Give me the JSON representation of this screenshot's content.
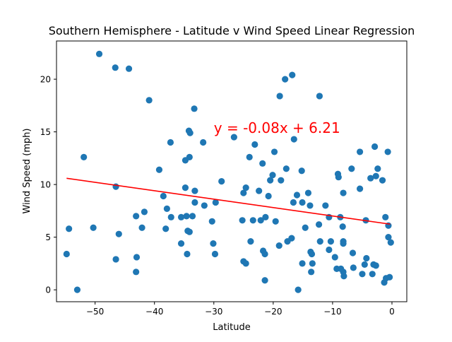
{
  "chart_data": {
    "type": "scatter",
    "title": "Southern Hemisphere - Latitude v Wind Speed Linear Regression",
    "xlabel": "Latitude",
    "ylabel": "Wind Speed (mph)",
    "xlim": [
      -56.5,
      2.5
    ],
    "ylim": [
      -1.13,
      23.63
    ],
    "xticks": [
      -50,
      -40,
      -30,
      -20,
      -10,
      0
    ],
    "yticks": [
      0,
      5,
      10,
      15,
      20
    ],
    "grid": false,
    "legend": "none",
    "point_color": "#1f77b4",
    "line_color": "#ff0000",
    "regression": {
      "equation": "y = -0.08x + 6.21",
      "slope": -0.08,
      "intercept": 6.21,
      "x_range": [
        -54.8,
        -0.3
      ],
      "label_position": [
        -30,
        14.9
      ]
    },
    "points": [
      [
        -54.8,
        3.4
      ],
      [
        -54.4,
        5.8
      ],
      [
        -53.0,
        0.0
      ],
      [
        -51.9,
        12.6
      ],
      [
        -50.3,
        5.9
      ],
      [
        -49.3,
        22.4
      ],
      [
        -46.6,
        21.1
      ],
      [
        -44.3,
        21.0
      ],
      [
        -46.5,
        9.8
      ],
      [
        -46.0,
        5.3
      ],
      [
        -46.5,
        2.9
      ],
      [
        -43.0,
        3.1
      ],
      [
        -43.1,
        1.7
      ],
      [
        -41.7,
        7.4
      ],
      [
        -42.1,
        5.9
      ],
      [
        -43.1,
        7.0
      ],
      [
        -40.9,
        18.0
      ],
      [
        -39.2,
        11.4
      ],
      [
        -38.5,
        8.9
      ],
      [
        -37.9,
        7.7
      ],
      [
        -38.1,
        5.8
      ],
      [
        -37.3,
        14.0
      ],
      [
        -37.2,
        6.9
      ],
      [
        -35.5,
        6.9
      ],
      [
        -35.5,
        4.4
      ],
      [
        -34.8,
        12.3
      ],
      [
        -34.8,
        9.7
      ],
      [
        -34.6,
        7.0
      ],
      [
        -34.5,
        3.4
      ],
      [
        -34.4,
        5.6
      ],
      [
        -34.1,
        5.5
      ],
      [
        -34.2,
        15.1
      ],
      [
        -34.0,
        14.9
      ],
      [
        -34.1,
        12.6
      ],
      [
        -33.6,
        7.0
      ],
      [
        -33.3,
        17.2
      ],
      [
        -33.2,
        8.3
      ],
      [
        -33.2,
        9.4
      ],
      [
        -31.8,
        14.0
      ],
      [
        -31.6,
        8.0
      ],
      [
        -30.3,
        6.5
      ],
      [
        -30.1,
        4.4
      ],
      [
        -29.8,
        3.4
      ],
      [
        -29.7,
        8.3
      ],
      [
        -28.7,
        10.3
      ],
      [
        -26.6,
        14.5
      ],
      [
        -25.2,
        6.6
      ],
      [
        -25.0,
        9.2
      ],
      [
        -25.0,
        2.7
      ],
      [
        -24.6,
        2.5
      ],
      [
        -24.6,
        9.7
      ],
      [
        -24.0,
        12.6
      ],
      [
        -23.8,
        4.6
      ],
      [
        -23.4,
        6.6
      ],
      [
        -23.1,
        13.8
      ],
      [
        -22.4,
        9.4
      ],
      [
        -22.1,
        6.6
      ],
      [
        -21.8,
        12.0
      ],
      [
        -21.7,
        3.7
      ],
      [
        -21.4,
        3.4
      ],
      [
        -21.4,
        0.9
      ],
      [
        -21.3,
        6.9
      ],
      [
        -20.8,
        8.9
      ],
      [
        -20.5,
        10.4
      ],
      [
        -20.1,
        10.9
      ],
      [
        -19.8,
        13.1
      ],
      [
        -19.6,
        6.5
      ],
      [
        -18.9,
        18.4
      ],
      [
        -19.0,
        4.2
      ],
      [
        -18.7,
        10.4
      ],
      [
        -18.0,
        20.0
      ],
      [
        -17.8,
        11.5
      ],
      [
        -17.6,
        4.6
      ],
      [
        -16.8,
        20.4
      ],
      [
        -16.9,
        4.9
      ],
      [
        -16.5,
        14.3
      ],
      [
        -16.6,
        8.3
      ],
      [
        -16.0,
        9.0
      ],
      [
        -15.8,
        0.0
      ],
      [
        -15.1,
        8.3
      ],
      [
        -15.2,
        11.3
      ],
      [
        -15.1,
        2.5
      ],
      [
        -14.6,
        5.9
      ],
      [
        -14.1,
        9.2
      ],
      [
        -13.8,
        8.0
      ],
      [
        -13.7,
        3.6
      ],
      [
        -13.6,
        1.7
      ],
      [
        -13.5,
        3.4
      ],
      [
        -13.4,
        2.5
      ],
      [
        -12.2,
        18.4
      ],
      [
        -12.3,
        6.2
      ],
      [
        -12.1,
        4.6
      ],
      [
        -11.2,
        8.0
      ],
      [
        -10.6,
        6.9
      ],
      [
        -10.6,
        3.8
      ],
      [
        -10.3,
        4.6
      ],
      [
        -9.6,
        3.1
      ],
      [
        -9.3,
        2.0
      ],
      [
        -9.1,
        11.0
      ],
      [
        -9.0,
        10.7
      ],
      [
        -8.7,
        6.9
      ],
      [
        -8.6,
        2.0
      ],
      [
        -8.2,
        9.2
      ],
      [
        -8.3,
        6.0
      ],
      [
        -8.2,
        4.6
      ],
      [
        -8.2,
        4.4
      ],
      [
        -8.2,
        1.7
      ],
      [
        -8.1,
        1.3
      ],
      [
        -6.8,
        11.5
      ],
      [
        -6.6,
        3.5
      ],
      [
        -6.5,
        2.1
      ],
      [
        -5.4,
        13.1
      ],
      [
        -5.4,
        9.6
      ],
      [
        -5.0,
        1.5
      ],
      [
        -4.6,
        2.4
      ],
      [
        -4.4,
        6.6
      ],
      [
        -4.3,
        3.0
      ],
      [
        -3.6,
        10.6
      ],
      [
        -3.3,
        1.5
      ],
      [
        -3.1,
        2.4
      ],
      [
        -2.9,
        13.6
      ],
      [
        -2.7,
        2.3
      ],
      [
        -2.7,
        10.8
      ],
      [
        -2.4,
        11.5
      ],
      [
        -1.6,
        10.4
      ],
      [
        -1.3,
        0.7
      ],
      [
        -1.1,
        6.9
      ],
      [
        -1.0,
        1.1
      ],
      [
        -0.7,
        13.1
      ],
      [
        -0.6,
        6.1
      ],
      [
        -0.6,
        5.0
      ],
      [
        -0.4,
        1.2
      ],
      [
        -0.2,
        4.5
      ]
    ]
  }
}
